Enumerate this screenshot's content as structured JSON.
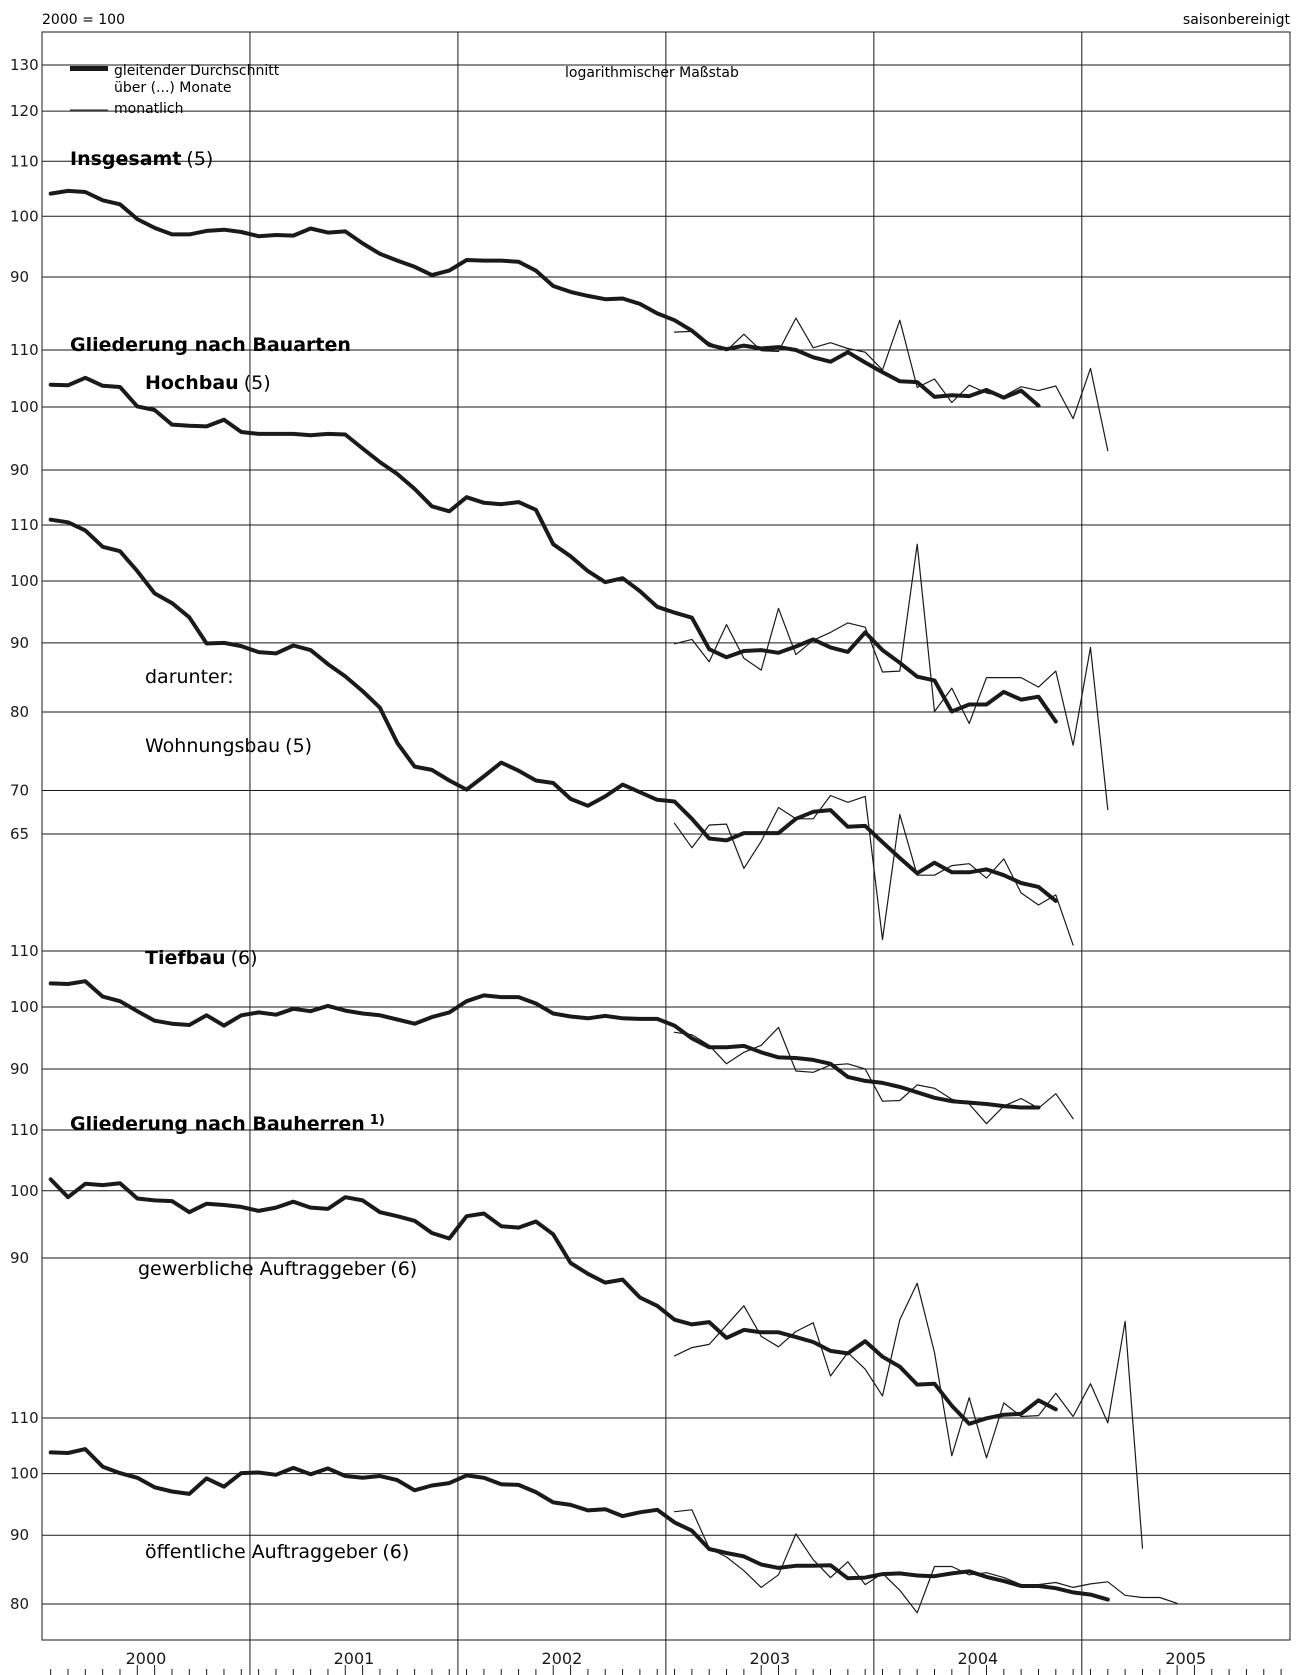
{
  "header": {
    "base_label": "2000 = 100",
    "adjustment_label": "saisonbereinigt",
    "scale_note": "logarithmischer Maßstab"
  },
  "legend": {
    "thick_line_label_1": "gleitender Durchschnitt",
    "thick_line_label_2": "über (...) Monate",
    "thin_line_label": "monatlich"
  },
  "section_headings": {
    "by_construction_type": "Gliederung nach Bauarten",
    "by_client": "Gliederung nach Bauherren",
    "by_client_note": "1)",
    "darunter": "darunter:"
  },
  "x_axis": {
    "years": [
      "2000",
      "2001",
      "2002",
      "2003",
      "2004",
      "2005"
    ]
  },
  "colors": {
    "line": "#1a1a1a",
    "grid": "#1a1a1a",
    "background": "#ffffff"
  },
  "chart_data": [
    {
      "type": "line",
      "title": "Insgesamt",
      "title_suffix": "(5)",
      "scale": "log",
      "y_ticks": [
        90,
        100,
        110,
        120,
        130
      ],
      "series": [
        {
          "name": "gleitender Durchschnitt über (5) Monate",
          "start": "2000-01",
          "values": [
            104,
            104.5,
            104.3,
            102.8,
            102.1,
            99.5,
            98,
            96.9,
            96.9,
            97.5,
            97.7,
            97.3,
            96.6,
            96.8,
            96.7,
            97.9,
            97.2,
            97.4,
            95.4,
            93.7,
            92.6,
            91.6,
            90.3,
            91,
            92.7,
            92.6,
            92.6,
            92.4,
            91,
            88.6,
            87.7,
            87.1,
            86.6,
            86.7,
            85.9,
            84.5,
            83.5,
            82,
            80,
            79.4,
            79.9,
            79.5,
            79.7,
            79.3,
            78.3,
            77.7,
            79,
            77.6,
            76.3,
            75.1,
            75,
            73.1,
            73.3,
            73.2,
            74,
            73,
            73.9,
            72
          ]
        },
        {
          "name": "monatlich",
          "start": "2003-01",
          "values": [
            81.8,
            81.9,
            80.3,
            79.2,
            81.5,
            79.2,
            79.1,
            83.8,
            79.6,
            80.3,
            79.5,
            79,
            76.6,
            83.5,
            74.3,
            75.4,
            72.4,
            74.6,
            73.6,
            73.2,
            74.4,
            73.9,
            74.5,
            70.4,
            76.8,
            66.6
          ]
        }
      ]
    },
    {
      "type": "line",
      "title": "Hochbau",
      "title_suffix": "(5)",
      "scale": "log",
      "y_ticks": [
        90,
        100,
        110
      ],
      "series": [
        {
          "name": "gleitender Durchschnitt über (5) Monate",
          "start": "2000-01",
          "values": [
            103.8,
            103.7,
            105,
            103.6,
            103.4,
            100.1,
            99.5,
            97.1,
            96.9,
            96.8,
            97.9,
            95.9,
            95.6,
            95.6,
            95.6,
            95.4,
            95.6,
            95.5,
            93.3,
            91.2,
            89.4,
            87.2,
            84.7,
            84,
            86,
            85.2,
            85,
            85.3,
            84.2,
            79.5,
            77.9,
            76,
            74.6,
            75.1,
            73.5,
            71.6,
            70.9,
            70.3,
            66.7,
            65.8,
            66.5,
            66.6,
            66.3,
            67,
            67.8,
            66.9,
            66.4,
            68.6,
            66.6,
            65.2,
            63.7,
            63.3,
            60.1,
            60.8,
            60.8,
            62.1,
            61.3,
            61.6,
            59.1
          ]
        },
        {
          "name": "monatlich",
          "start": "2003-01",
          "values": [
            67.3,
            67.8,
            65.3,
            69.5,
            65.7,
            64.4,
            71.4,
            66.1,
            67.7,
            68.6,
            69.7,
            69.2,
            64.2,
            64.3,
            79.5,
            60.1,
            62.5,
            58.9,
            63.6,
            63.6,
            63.6,
            62.6,
            64.3,
            56.8,
            66.9,
            51
          ]
        }
      ]
    },
    {
      "type": "line",
      "title": "Wohnungsbau",
      "title_suffix": "(5)",
      "scale": "log",
      "y_ticks": [
        65,
        70,
        80,
        90,
        100,
        110
      ],
      "series": [
        {
          "name": "gleitender Durchschnitt über (5) Monate",
          "start": "2000-01",
          "values": [
            111,
            110.5,
            109,
            106,
            105.2,
            101.7,
            97.9,
            96.3,
            94,
            89.9,
            90,
            89.5,
            88.6,
            88.4,
            89.6,
            88.9,
            86.8,
            85,
            82.9,
            80.6,
            75.9,
            72.9,
            72.5,
            71.2,
            70.1,
            71.7,
            73.4,
            72.4,
            71.2,
            70.9,
            69,
            68.2,
            69.3,
            70.7,
            69.8,
            68.9,
            68.7,
            66.7,
            64.5,
            64.3,
            65.1,
            65.1,
            65.1,
            66.7,
            67.5,
            67.7,
            65.8,
            65.9,
            64.1,
            62.4,
            60.8,
            61.9,
            60.9,
            60.9,
            61.2,
            60.6,
            59.8,
            59.4,
            58
          ]
        },
        {
          "name": "monatlich",
          "start": "2003-01",
          "values": [
            66.2,
            63.5,
            66,
            66.1,
            61.3,
            64.2,
            68,
            66.7,
            66.7,
            69.4,
            68.6,
            69.3,
            54.3,
            67.2,
            60.6,
            60.6,
            61.6,
            61.8,
            60.3,
            62.3,
            58.8,
            57.6,
            58.6,
            53.8
          ]
        }
      ]
    },
    {
      "type": "line",
      "title": "Tiefbau",
      "title_suffix": "(6)",
      "scale": "log",
      "y_ticks": [
        90,
        100,
        110
      ],
      "series": [
        {
          "name": "gleitender Durchschnitt über (6) Monate",
          "start": "2000-01",
          "values": [
            104.1,
            104,
            104.5,
            101.8,
            101,
            99.3,
            97.7,
            97.2,
            97,
            98.6,
            96.9,
            98.6,
            99.1,
            98.7,
            99.7,
            99.3,
            100.2,
            99.4,
            98.9,
            98.6,
            97.9,
            97.2,
            98.3,
            99.1,
            101,
            102,
            101.7,
            101.7,
            100.6,
            98.9,
            98.4,
            98.1,
            98.5,
            98.1,
            98,
            98,
            96.9,
            94.8,
            93.4,
            93.4,
            93.6,
            92.6,
            91.8,
            91.7,
            91.4,
            90.8,
            88.8,
            88.2,
            87.9,
            87.3,
            86.5,
            85.7,
            85.2,
            85,
            84.8,
            84.5,
            84.3,
            84.3
          ]
        },
        {
          "name": "monatlich",
          "start": "2003-01",
          "values": [
            95.8,
            95.4,
            93.7,
            90.8,
            92.6,
            93.7,
            96.6,
            89.7,
            89.5,
            90.6,
            90.8,
            90,
            85.2,
            85.3,
            87.6,
            87.1,
            85.5,
            84.8,
            82,
            84.5,
            85.6,
            84.2,
            86.3,
            82.7
          ]
        }
      ]
    },
    {
      "type": "line",
      "title": "gewerbliche Auftraggeber",
      "title_suffix": "(6)",
      "scale": "log",
      "y_ticks": [
        90,
        100,
        110
      ],
      "series": [
        {
          "name": "gleitender Durchschnitt über (6) Monate",
          "start": "2000-01",
          "values": [
            101.8,
            99,
            101.1,
            100.9,
            101.2,
            98.8,
            98.5,
            98.4,
            96.7,
            98,
            97.8,
            97.5,
            96.9,
            97.4,
            98.3,
            97.4,
            97.2,
            99,
            98.5,
            96.7,
            96.1,
            95.4,
            93.6,
            92.8,
            96.1,
            96.5,
            94.6,
            94.4,
            95.3,
            93.4,
            89.3,
            87.8,
            86.6,
            87,
            84.6,
            83.5,
            81.7,
            81.1,
            81.4,
            79.4,
            80.4,
            80.1,
            80.1,
            79.5,
            78.9,
            77.8,
            77.5,
            79,
            77.1,
            75.9,
            73.8,
            73.9,
            71.4,
            69.4,
            70,
            70.4,
            70.5,
            72,
            71
          ]
        },
        {
          "name": "monatlich",
          "start": "2003-01",
          "values": [
            77.2,
            78.2,
            78.6,
            81,
            83.5,
            79.6,
            78.3,
            80.2,
            81.3,
            74.8,
            77.6,
            75.6,
            72.5,
            81.7,
            86.5,
            77.6,
            66,
            72.3,
            65.8,
            71.7,
            70.2,
            70.3,
            72.8,
            70.2,
            73.9,
            69.5,
            81.5,
            57.1
          ]
        }
      ]
    },
    {
      "type": "line",
      "title": "öffentliche Auftraggeber",
      "title_suffix": "(6)",
      "scale": "log",
      "y_ticks": [
        80,
        90,
        100,
        110
      ],
      "series": [
        {
          "name": "gleitender Durchschnitt über (6) Monate",
          "start": "2000-01",
          "values": [
            103.7,
            103.6,
            104.3,
            101.2,
            100.1,
            99.3,
            97.7,
            97,
            96.6,
            99.2,
            97.8,
            100.1,
            100.2,
            99.8,
            101,
            99.9,
            100.9,
            99.6,
            99.3,
            99.6,
            98.9,
            97.2,
            98,
            98.4,
            99.7,
            99.3,
            98.2,
            98.1,
            96.9,
            95.2,
            94.8,
            93.9,
            94.1,
            93,
            93.6,
            94,
            92,
            90.7,
            87.9,
            87.3,
            86.8,
            85.6,
            85.1,
            85.4,
            85.4,
            85.5,
            83.6,
            83.7,
            84.2,
            84.3,
            84,
            83.9,
            84.3,
            84.6,
            83.8,
            83.2,
            82.5,
            82.5,
            82.2,
            81.6,
            81.3,
            80.6
          ]
        },
        {
          "name": "monatlich",
          "start": "2003-01",
          "values": [
            93.7,
            94,
            88,
            86.7,
            84.7,
            82.3,
            84.1,
            90.2,
            86.3,
            83.7,
            86,
            82.7,
            84.3,
            81.9,
            78.8,
            85.3,
            85.3,
            84.1,
            84.4,
            83.7,
            82.7,
            82.7,
            83,
            82.3,
            82.8,
            83.1,
            81.2,
            80.9,
            80.9,
            80.1
          ]
        }
      ]
    }
  ]
}
